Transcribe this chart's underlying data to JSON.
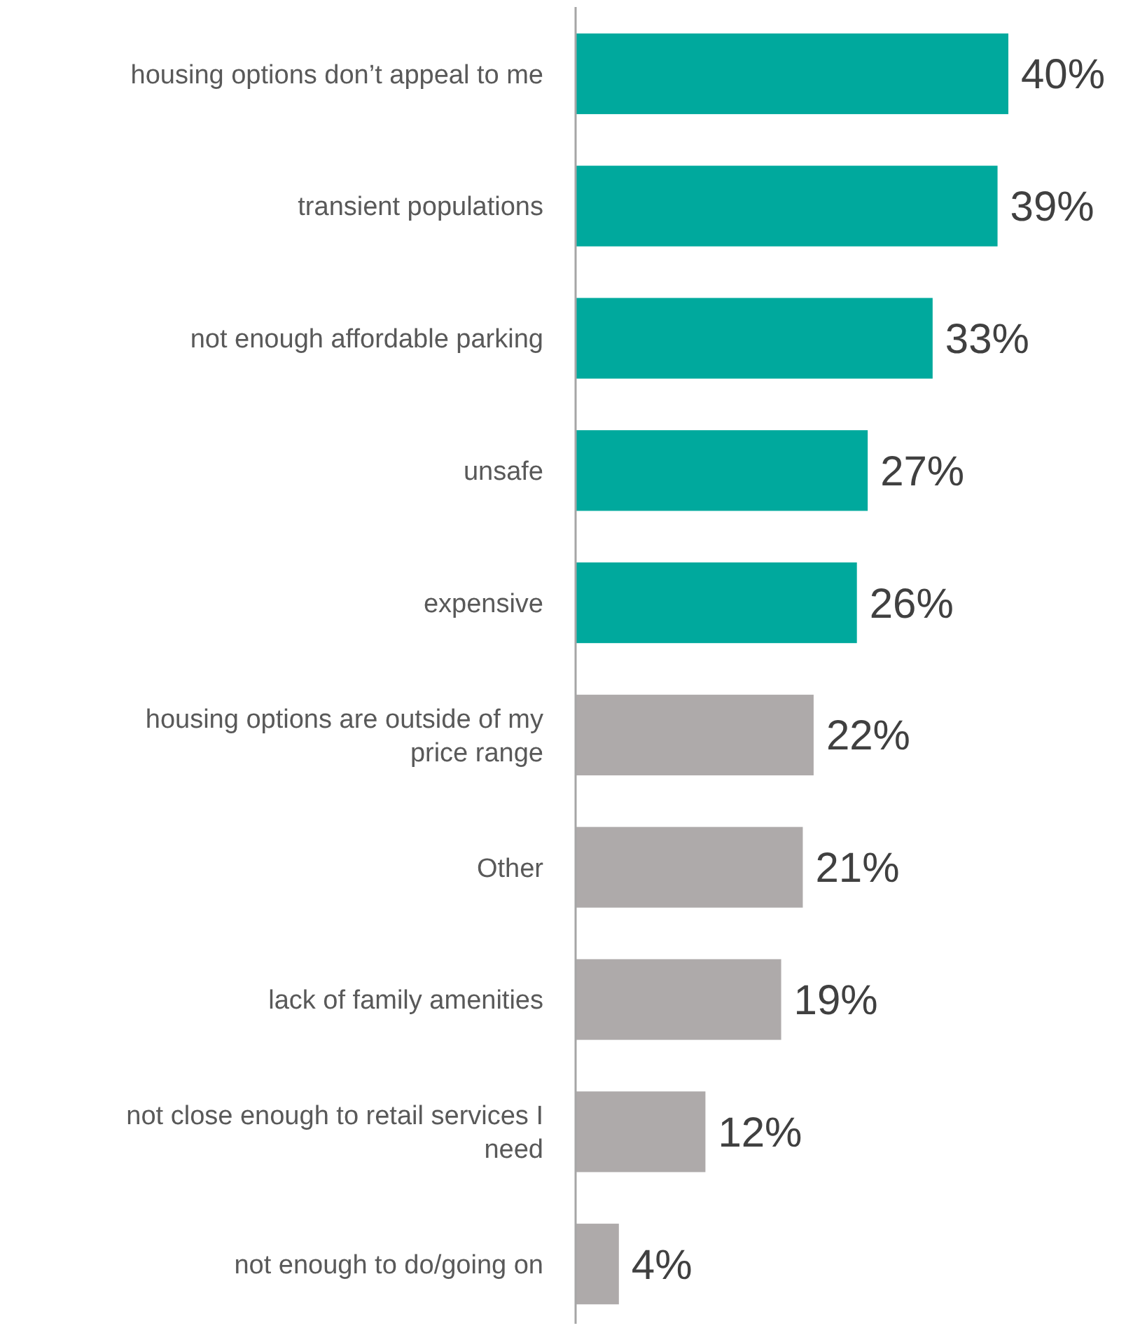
{
  "chart_data": {
    "type": "bar",
    "orientation": "horizontal",
    "data_labels": true,
    "categories": [
      "housing options don’t appeal to me",
      "transient populations",
      "not enough affordable parking",
      "unsafe",
      "expensive",
      "housing options are outside of my price range",
      "Other",
      "lack of family amenities",
      "not close enough to retail services I need",
      "not enough to do/going on"
    ],
    "values": [
      40,
      39,
      33,
      27,
      26,
      22,
      21,
      19,
      12,
      4
    ],
    "value_labels": [
      "40%",
      "39%",
      "33%",
      "27%",
      "26%",
      "22%",
      "21%",
      "19%",
      "12%",
      "4%"
    ],
    "colors": [
      "#00a99d",
      "#00a99d",
      "#00a99d",
      "#00a99d",
      "#00a99d",
      "#aeaaaa",
      "#aeaaaa",
      "#aeaaaa",
      "#aeaaaa",
      "#aeaaaa"
    ]
  }
}
